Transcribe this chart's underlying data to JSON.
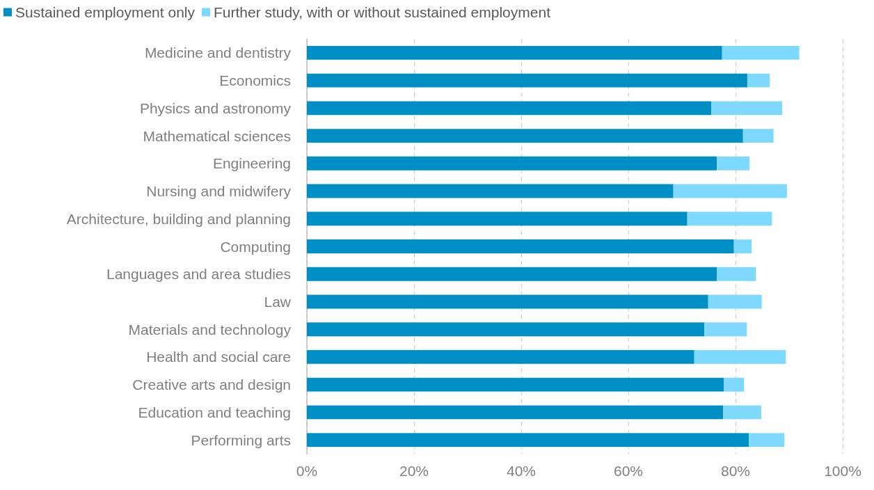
{
  "chart_data": {
    "type": "bar",
    "orientation": "horizontal",
    "stacked": true,
    "categories": [
      "Medicine and dentistry",
      "Economics",
      "Physics and astronomy",
      "Mathematical sciences",
      "Engineering",
      "Nursing and midwifery",
      "Architecture, building and planning",
      "Computing",
      "Languages and area studies",
      "Law",
      "Materials and technology",
      "Health and social care",
      "Creative arts and design",
      "Education and teaching",
      "Performing arts"
    ],
    "series": [
      {
        "name": "Sustained employment only",
        "color": "#008fc4",
        "values": [
          77.5,
          82.2,
          75.5,
          81.4,
          76.5,
          68.4,
          71.0,
          79.7,
          76.5,
          74.9,
          74.2,
          72.3,
          77.8,
          77.7,
          82.5
        ]
      },
      {
        "name": "Further study, with or without sustained employment",
        "color": "#7fd9ff",
        "values": [
          14.4,
          4.2,
          13.2,
          5.7,
          6.1,
          21.2,
          15.8,
          3.3,
          7.3,
          10.0,
          7.9,
          17.1,
          3.8,
          7.1,
          6.6
        ]
      }
    ],
    "xlim": [
      0,
      100
    ],
    "xticks": [
      {
        "value": 0,
        "label": "0%"
      },
      {
        "value": 20,
        "label": "20%"
      },
      {
        "value": 40,
        "label": "40%"
      },
      {
        "value": 60,
        "label": "60%"
      },
      {
        "value": 80,
        "label": "80%"
      },
      {
        "value": 100,
        "label": "100%"
      }
    ],
    "grid": "x",
    "legend": "top left"
  }
}
